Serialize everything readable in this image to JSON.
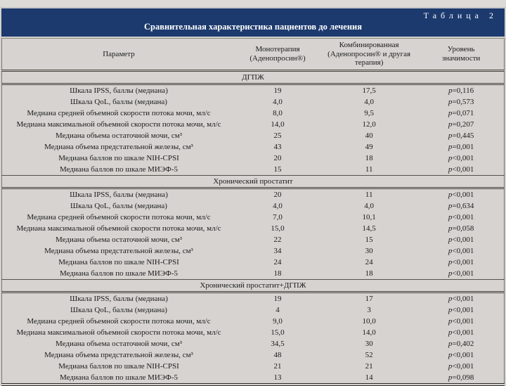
{
  "table": {
    "label": "Таблица 2",
    "title": "Сравнительная характеристика пациентов до лечения",
    "columns": [
      "Параметр",
      "Монотерапия\n(Аденопросин®)",
      "Комбинированная\n(Аденопросин® и другая терапия)",
      "Уровень\nзначимости"
    ],
    "accent_color": "#1c3a6e",
    "row_background": "#d6d3d0",
    "sections": [
      {
        "name": "ДГПЖ",
        "rows": [
          [
            "Шкала IPSS, баллы (медиана)",
            "19",
            "17,5",
            "p=0,116"
          ],
          [
            "Шкала QoL, баллы (медиана)",
            "4,0",
            "4,0",
            "p=0,573"
          ],
          [
            "Медиана средней объемной скорости потока мочи, мл/с",
            "8,0",
            "9,5",
            "p=0,071"
          ],
          [
            "Медиана максимальной объемной скорости потока мочи, мл/с",
            "14,0",
            "12,0",
            "p=0,207"
          ],
          [
            "Медиана объема остаточной мочи, см³",
            "25",
            "40",
            "p=0,445"
          ],
          [
            "Медиана объема предстательной железы, см³",
            "43",
            "49",
            "p=0,001"
          ],
          [
            "Медиана баллов по шкале NIH-CPSI",
            "20",
            "18",
            "p<0,001"
          ],
          [
            "Медиана баллов по шкале МИЭФ-5",
            "15",
            "11",
            "p<0,001"
          ]
        ]
      },
      {
        "name": "Хронический простатит",
        "rows": [
          [
            "Шкала IPSS, баллы (медиана)",
            "20",
            "11",
            "p<0,001"
          ],
          [
            "Шкала QoL, баллы (медиана)",
            "4,0",
            "4,0",
            "p=0,634"
          ],
          [
            "Медиана средней объемной скорости потока мочи, мл/с",
            "7,0",
            "10,1",
            "p<0,001"
          ],
          [
            "Медиана максимальной объемной скорости потока мочи, мл/с",
            "15,0",
            "14,5",
            "p=0,058"
          ],
          [
            "Медиана объема остаточной мочи, см³",
            "22",
            "15",
            "p<0,001"
          ],
          [
            "Медиана объема предстательной железы, см³",
            "34",
            "30",
            "p<0,001"
          ],
          [
            "Медиана баллов по шкале NIH-CPSI",
            "24",
            "24",
            "p<0,001"
          ],
          [
            "Медиана баллов по шкале МИЭФ-5",
            "18",
            "18",
            "p<0,001"
          ]
        ]
      },
      {
        "name": "Хронический простатит+ДГПЖ",
        "rows": [
          [
            "Шкала IPSS, баллы (медиана)",
            "19",
            "17",
            "p<0,001"
          ],
          [
            "Шкала QoL, баллы (медиана)",
            "4",
            "3",
            "p<0,001"
          ],
          [
            "Медиана средней объемной скорости потока мочи, мл/с",
            "9,0",
            "10,0",
            "p<0,001"
          ],
          [
            "Медиана максимальной объемной скорости потока мочи, мл/с",
            "15,0",
            "14,0",
            "p<0,001"
          ],
          [
            "Медиана объема остаточной мочи, см³",
            "34,5",
            "30",
            "p=0,402"
          ],
          [
            "Медиана объема предстательной железы, см³",
            "48",
            "52",
            "p<0,001"
          ],
          [
            "Медиана баллов по шкале NIH-CPSI",
            "21",
            "21",
            "p<0,001"
          ],
          [
            "Медиана баллов по шкале МИЭФ-5",
            "13",
            "14",
            "p=0,098"
          ]
        ]
      }
    ]
  }
}
